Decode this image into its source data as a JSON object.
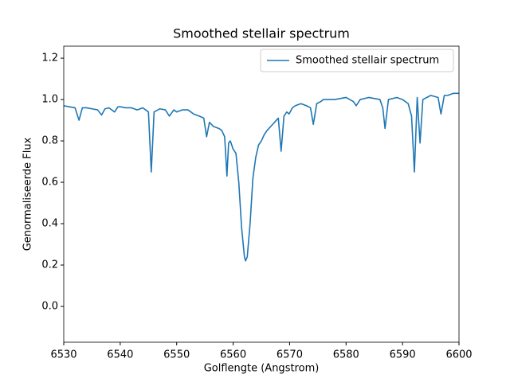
{
  "chart_data": {
    "type": "line",
    "title": "Smoothed stellair spectrum",
    "xlabel": "Golflengte (Angstrom)",
    "ylabel": "Genormaliseerde Flux",
    "x": [
      6530,
      6531,
      6532,
      6532.7,
      6533.3,
      6534,
      6535,
      6536,
      6536.7,
      6537.3,
      6538,
      6539,
      6539.6,
      6540,
      6541,
      6542,
      6543,
      6544,
      6545,
      6545.5,
      6546,
      6547,
      6548,
      6548.7,
      6549.5,
      6550,
      6551,
      6552,
      6553,
      6554,
      6554.8,
      6555.3,
      6555.8,
      6556.5,
      6557.5,
      6558,
      6558.5,
      6558.9,
      6559.2,
      6559.5,
      6560,
      6560.5,
      6561,
      6561.5,
      6562,
      6562.2,
      6562.5,
      6563,
      6563.5,
      6564,
      6564.5,
      6565,
      6565.5,
      6566,
      6567,
      6568,
      6568.5,
      6569,
      6569.5,
      6569.9,
      6570.5,
      6571,
      6572,
      6573,
      6573.7,
      6574.2,
      6574.8,
      6575.5,
      6576,
      6578,
      6580,
      6581.3,
      6581.8,
      6582.5,
      6584,
      6586,
      6586.5,
      6586.9,
      6587.5,
      6589,
      6590,
      6591,
      6591.6,
      6592.1,
      6592.6,
      6593.1,
      6593.6,
      6595,
      6596.3,
      6596.8,
      6597.4,
      6598,
      6599,
      6600
    ],
    "series": [
      {
        "name": "Smoothed stellair spectrum",
        "color": "#1f77b4",
        "values": [
          0.97,
          0.965,
          0.96,
          0.9,
          0.96,
          0.96,
          0.955,
          0.95,
          0.925,
          0.955,
          0.96,
          0.94,
          0.965,
          0.965,
          0.96,
          0.96,
          0.95,
          0.96,
          0.94,
          0.65,
          0.94,
          0.955,
          0.95,
          0.92,
          0.95,
          0.94,
          0.95,
          0.95,
          0.93,
          0.92,
          0.91,
          0.82,
          0.89,
          0.87,
          0.86,
          0.85,
          0.82,
          0.63,
          0.79,
          0.8,
          0.76,
          0.74,
          0.6,
          0.38,
          0.24,
          0.22,
          0.24,
          0.4,
          0.62,
          0.72,
          0.78,
          0.8,
          0.83,
          0.85,
          0.88,
          0.91,
          0.75,
          0.92,
          0.94,
          0.93,
          0.96,
          0.97,
          0.98,
          0.97,
          0.96,
          0.88,
          0.98,
          0.99,
          1.0,
          1.0,
          1.01,
          0.99,
          0.97,
          1.0,
          1.01,
          1.0,
          0.96,
          0.86,
          1.0,
          1.01,
          1.0,
          0.98,
          0.92,
          0.65,
          1.01,
          0.79,
          1.0,
          1.02,
          1.01,
          0.93,
          1.02,
          1.02,
          1.03,
          1.03
        ]
      }
    ],
    "xlim": [
      6530,
      6600
    ],
    "xticks": [
      6530,
      6540,
      6550,
      6560,
      6570,
      6580,
      6590,
      6600
    ],
    "ylim": [
      -0.173,
      1.258
    ],
    "yticks": [
      {
        "value": 0,
        "label": "0.0"
      },
      0.2,
      0.4,
      0.6,
      0.8,
      {
        "value": 1,
        "label": "1.0"
      },
      1.2
    ],
    "legend": "upper right"
  }
}
